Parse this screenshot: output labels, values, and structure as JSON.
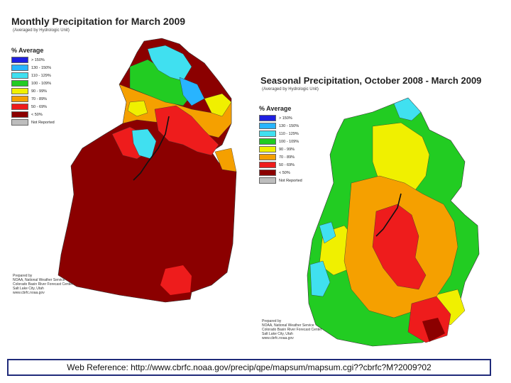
{
  "monthly": {
    "title": "Monthly Precipitation for March 2009",
    "subtitle": "(Averaged by Hydrologic Unit)",
    "legend_title": "% Average",
    "legend": [
      {
        "label": "> 150%",
        "color": "#1f1fe0"
      },
      {
        "label": "130 - 150%",
        "color": "#28b4ff"
      },
      {
        "label": "110 - 129%",
        "color": "#40e0f0"
      },
      {
        "label": "100 - 109%",
        "color": "#22cc22"
      },
      {
        "label": "90 - 99%",
        "color": "#f0f000"
      },
      {
        "label": "70 - 89%",
        "color": "#f5a000"
      },
      {
        "label": "50 - 69%",
        "color": "#ee1c1c"
      },
      {
        "label": "< 50%",
        "color": "#8b0000"
      },
      {
        "label": "Not Reported",
        "color": "#bdbdbd"
      }
    ],
    "credit": [
      "Prepared by",
      "NOAA, National Weather Service",
      "Colorado Basin River Forecast Center",
      "Salt Lake City, Utah",
      "www.cbrfc.noaa.gov"
    ]
  },
  "seasonal": {
    "title": "Seasonal Precipitation, October 2008 - March 2009",
    "subtitle": "(Averaged by Hydrologic Unit)",
    "legend_title": "% Average",
    "legend": [
      {
        "label": "> 150%",
        "color": "#1f1fe0"
      },
      {
        "label": "130 - 150%",
        "color": "#28b4ff"
      },
      {
        "label": "110 - 129%",
        "color": "#40e0f0"
      },
      {
        "label": "100 - 109%",
        "color": "#22cc22"
      },
      {
        "label": "90 - 99%",
        "color": "#f0f000"
      },
      {
        "label": "70 - 89%",
        "color": "#f5a000"
      },
      {
        "label": "50 - 69%",
        "color": "#ee1c1c"
      },
      {
        "label": "< 50%",
        "color": "#8b0000"
      },
      {
        "label": "Not Reported",
        "color": "#bdbdbd"
      }
    ],
    "credit": [
      "Prepared by",
      "NOAA, National Weather Service",
      "Colorado Basin River Forecast Center",
      "Salt Lake City, Utah",
      "www.cbrfc.noaa.gov"
    ]
  },
  "footer": {
    "text": "Web Reference: http://www.cbrfc.noaa.gov/precip/qpe/mapsum/mapsum.cgi??cbrfc?M?2009?02"
  }
}
